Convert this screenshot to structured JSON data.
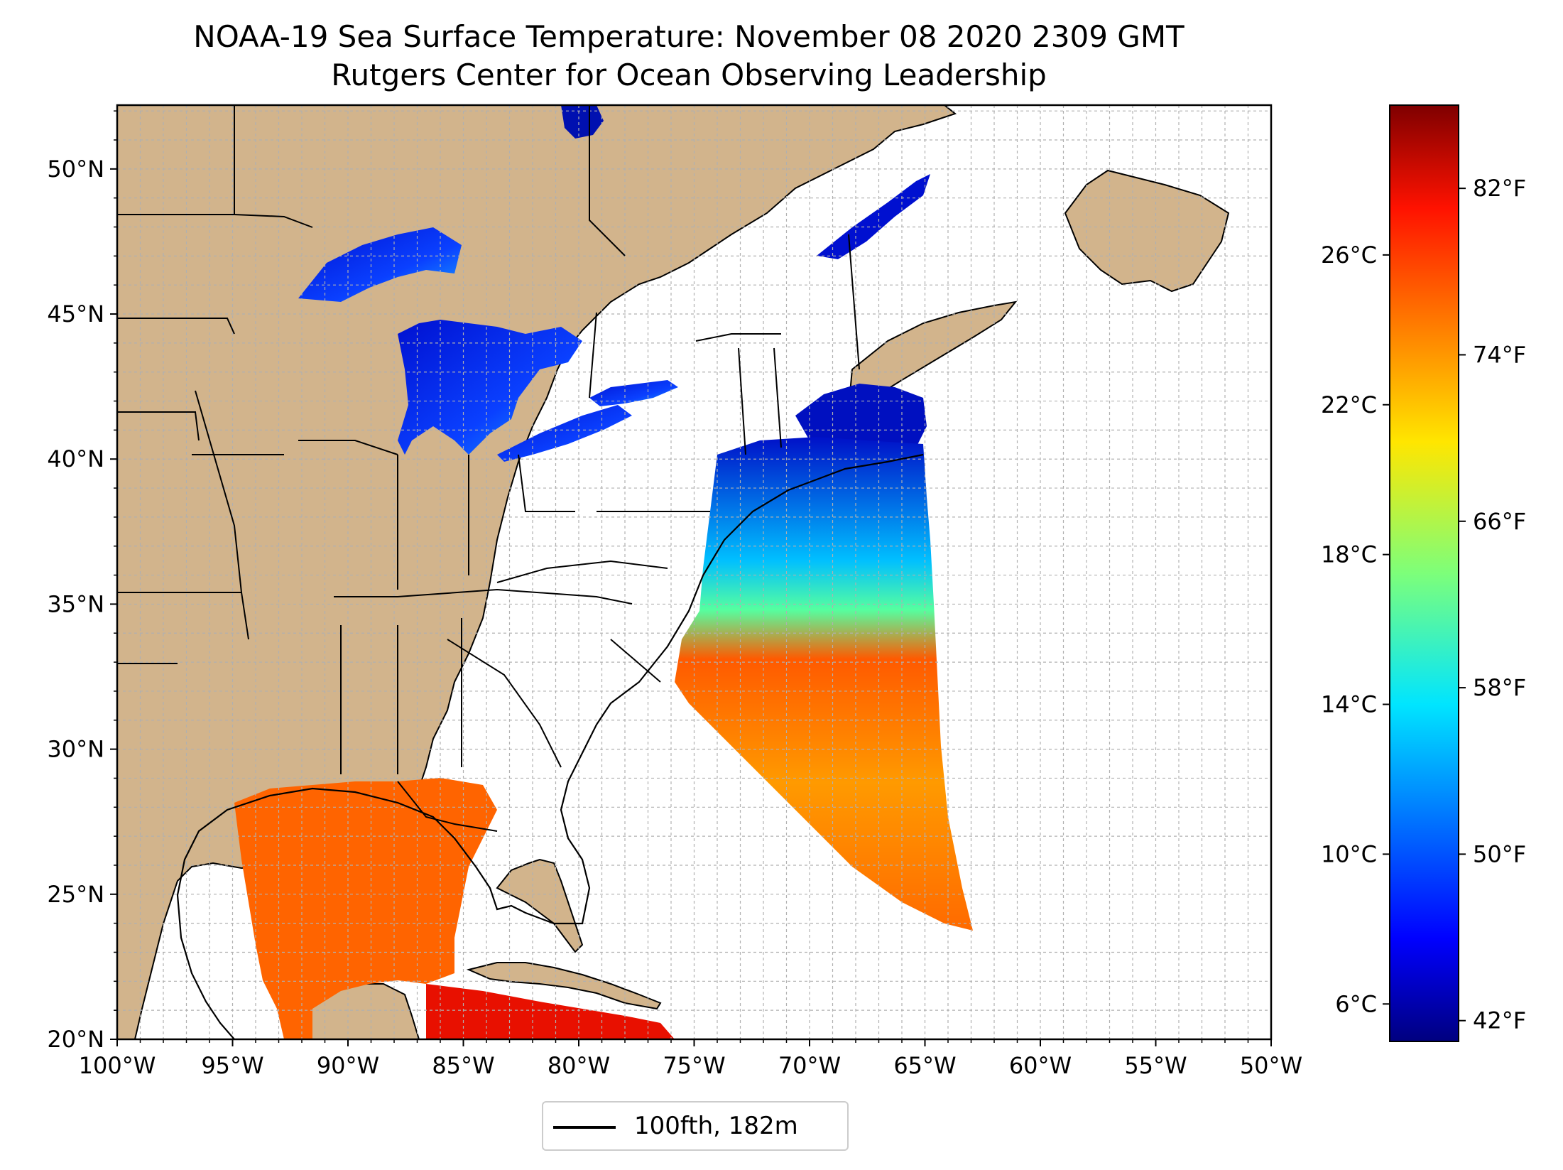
{
  "title": {
    "line1": "NOAA-19 Sea Surface Temperature: November 08 2020 2309 GMT",
    "line2": "Rutgers Center for Ocean Observing Leadership"
  },
  "map": {
    "lon_range": [
      -100,
      -50
    ],
    "lat_range": [
      20,
      52.2
    ],
    "lon_ticks": [
      "100°W",
      "95°W",
      "90°W",
      "85°W",
      "80°W",
      "75°W",
      "70°W",
      "65°W",
      "60°W",
      "55°W",
      "50°W"
    ],
    "lat_ticks": [
      "20°N",
      "25°N",
      "30°N",
      "35°N",
      "40°N",
      "45°N",
      "50°N"
    ],
    "gridlines": true,
    "colors": {
      "land": "#d2b48c",
      "water": "#ffffff",
      "grid": "#b0b0b0",
      "lakes_no_data": "#9db8e8"
    }
  },
  "colorbar": {
    "colormap": "jet",
    "range_c": [
      5,
      30
    ],
    "celsius_ticks": [
      "6°C",
      "10°C",
      "14°C",
      "18°C",
      "22°C",
      "26°C"
    ],
    "fahrenheit_ticks": [
      "42°F",
      "50°F",
      "58°F",
      "66°F",
      "74°F",
      "82°F"
    ]
  },
  "legend": {
    "label": "100fth, 182m"
  }
}
